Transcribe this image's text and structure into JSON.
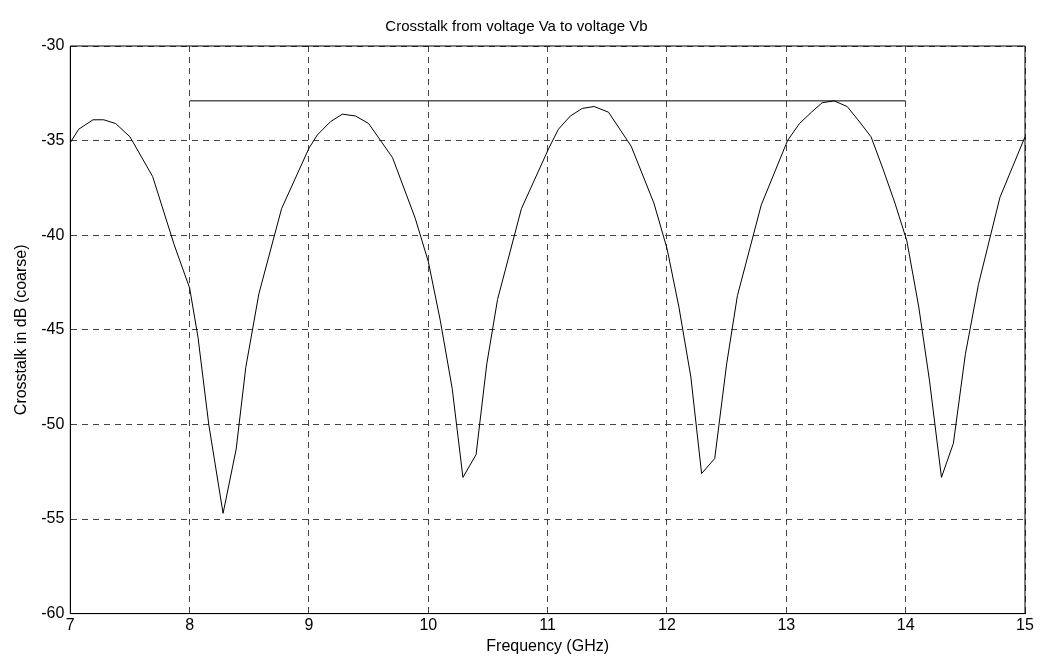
{
  "chart_data": {
    "type": "line",
    "title": "Crosstalk from voltage Va to voltage Vb",
    "xlabel": "Frequency (GHz)",
    "ylabel": "Crosstalk in dB (coarse)",
    "xlim": [
      7,
      15
    ],
    "xticks": [
      7,
      8,
      9,
      10,
      11,
      12,
      13,
      14,
      15
    ],
    "ylim": [
      -60,
      -30
    ],
    "yticks": [
      -60,
      -55,
      -50,
      -45,
      -40,
      -35,
      -30
    ],
    "grid": true,
    "legend": false,
    "marker": "none",
    "line_style": "solid",
    "series": [
      {
        "color": "#000000",
        "x": [
          7.0,
          7.07,
          7.19,
          7.28,
          7.38,
          7.5,
          7.69,
          7.87,
          8.0,
          8.07,
          8.16,
          8.28,
          8.39,
          8.47,
          8.58,
          8.77,
          9.0,
          9.07,
          9.18,
          9.28,
          9.39,
          9.5,
          9.7,
          9.89,
          10.0,
          10.1,
          10.2,
          10.29,
          10.4,
          10.49,
          10.58,
          10.78,
          11.01,
          11.09,
          11.19,
          11.29,
          11.39,
          11.51,
          11.7,
          11.89,
          12.0,
          12.1,
          12.2,
          12.29,
          12.4,
          12.5,
          12.59,
          12.79,
          13.01,
          13.11,
          13.21,
          13.3,
          13.4,
          13.51,
          13.6,
          13.71,
          13.81,
          13.91,
          14.01,
          14.11,
          14.2,
          14.3,
          14.4,
          14.5,
          14.61,
          14.79,
          15.0
        ],
        "values": [
          -35.1,
          -34.4,
          -33.9,
          -33.9,
          -34.1,
          -34.8,
          -36.9,
          -40.5,
          -42.8,
          -45.4,
          -50.0,
          -54.7,
          -51.3,
          -47.0,
          -43.1,
          -38.6,
          -35.4,
          -34.7,
          -34.0,
          -33.6,
          -33.7,
          -34.1,
          -35.9,
          -39.1,
          -41.4,
          -44.5,
          -48.1,
          -52.8,
          -51.6,
          -46.8,
          -43.4,
          -38.6,
          -35.4,
          -34.4,
          -33.7,
          -33.3,
          -33.2,
          -33.5,
          -35.3,
          -38.3,
          -40.7,
          -43.8,
          -47.5,
          -52.6,
          -51.8,
          -46.8,
          -43.2,
          -38.4,
          -35.0,
          -34.1,
          -33.5,
          -33.0,
          -32.9,
          -33.2,
          -33.9,
          -34.8,
          -36.5,
          -38.3,
          -40.3,
          -43.8,
          -47.7,
          -52.8,
          -51.0,
          -46.3,
          -42.6,
          -38.0,
          -34.8
        ]
      },
      {
        "color": "#000000",
        "x": [
          8,
          14
        ],
        "values": [
          -32.9,
          -32.9
        ]
      }
    ]
  }
}
